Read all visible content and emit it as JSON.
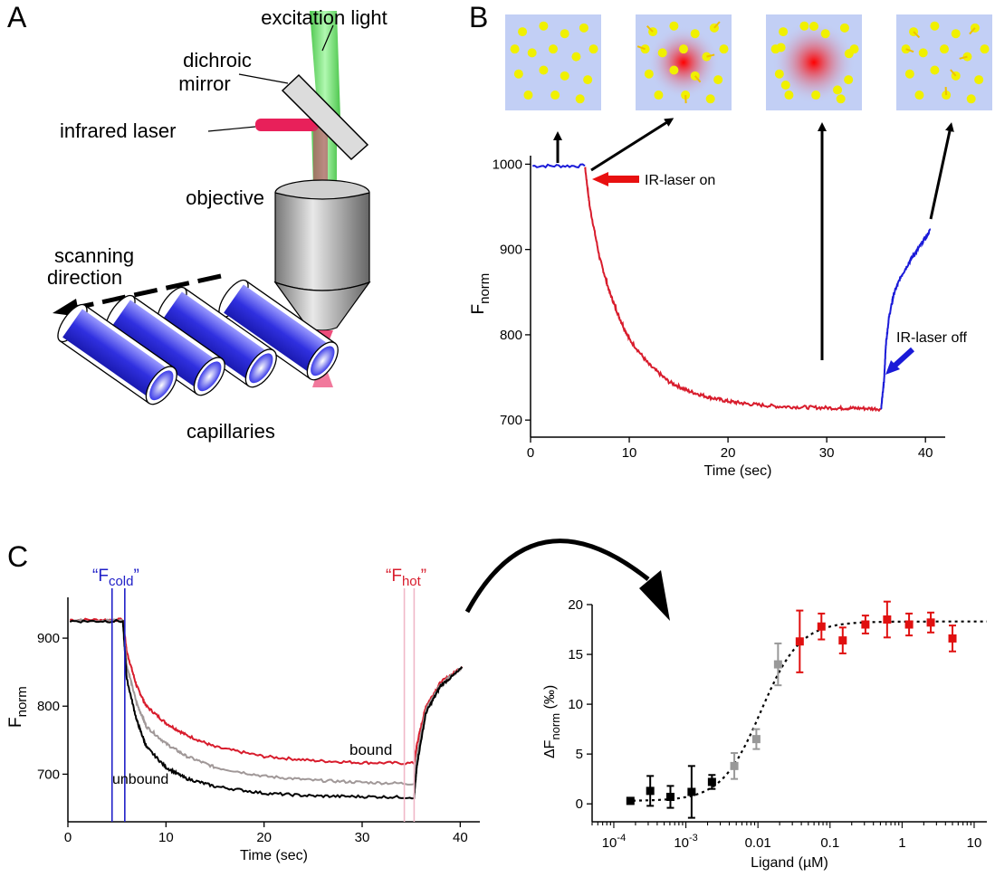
{
  "panel_labels": {
    "a": "A",
    "b": "B",
    "c": "C"
  },
  "panel_a": {
    "labels": {
      "excitation": "excitation light",
      "dichroic_1": "dichroic",
      "dichroic_2": "mirror",
      "infrared": "infrared laser",
      "objective": "objective",
      "scanning_1": "scanning",
      "scanning_2": "direction",
      "capillaries": "capillaries"
    },
    "colors": {
      "capillary": "#3a3ae8",
      "excitation": "#5fe05f",
      "laser": "#e8205a"
    }
  },
  "panel_b": {
    "annotations": {
      "ir_on": "IR-laser on",
      "ir_off": "IR-laser off"
    },
    "insets": [
      {
        "state": "uniform"
      },
      {
        "state": "heating"
      },
      {
        "state": "depleted"
      },
      {
        "state": "recovering"
      }
    ],
    "colors": {
      "cold": "#1a1ad8",
      "hot": "#d81c2c",
      "arrow": "#e81010",
      "inset_bg": "#c2cff5",
      "particle": "#f0f000"
    }
  },
  "panel_c": {
    "labels": {
      "f_cold": "“Fcold”",
      "f_hot": "“Fhot”",
      "bound": "bound",
      "unbound": "unbound"
    },
    "colors": {
      "bound": "#d81c2c",
      "intermediate": "#a09898",
      "unbound": "#000000",
      "cold_line": "#2020c8",
      "hot_line": "#f0b8c8"
    }
  },
  "chart_data": [
    {
      "type": "line",
      "xlabel": "Time (sec)",
      "ylabel": "Fnorm",
      "xlim": [
        0,
        42
      ],
      "ylim": [
        680,
        1010
      ],
      "xticks": [
        0,
        10,
        20,
        30,
        40
      ],
      "yticks": [
        700,
        800,
        900,
        1000
      ],
      "series": [
        {
          "color": "#1a1ad8",
          "x": [
            0.2,
            5.5
          ],
          "y": [
            998,
            998
          ]
        },
        {
          "color": "#d81c2c",
          "x": [
            5.5,
            6,
            7,
            8,
            9,
            10,
            12,
            14,
            16,
            18,
            20,
            22,
            25,
            28,
            31,
            33,
            35.5
          ],
          "y": [
            998,
            950,
            890,
            850,
            820,
            795,
            765,
            745,
            734,
            727,
            722,
            719,
            716,
            715,
            714,
            714,
            713
          ]
        },
        {
          "color": "#1a1ad8",
          "x": [
            35.5,
            35.8,
            36,
            36.3,
            36.8,
            37.5,
            38.5,
            39.5,
            40.5
          ],
          "y": [
            713,
            745,
            790,
            820,
            848,
            868,
            888,
            905,
            923
          ]
        }
      ]
    },
    {
      "type": "line",
      "xlabel": "Time (sec)",
      "ylabel": "Fnorm",
      "xlim": [
        0,
        42
      ],
      "ylim": [
        630,
        960
      ],
      "xticks": [
        0,
        10,
        20,
        30,
        40
      ],
      "yticks": [
        700,
        800,
        900
      ],
      "series": [
        {
          "name": "bound",
          "color": "#d81c2c",
          "x": [
            0.2,
            5.6,
            6,
            7,
            8,
            10,
            12,
            15,
            20,
            25,
            30,
            35.3,
            35.6,
            36.5,
            38,
            40.2
          ],
          "y": [
            927,
            927,
            880,
            830,
            800,
            775,
            758,
            740,
            726,
            720,
            717,
            716,
            745,
            800,
            835,
            858
          ]
        },
        {
          "color": "#a09898",
          "x": [
            0.2,
            5.6,
            6,
            7,
            8,
            10,
            12,
            15,
            20,
            25,
            30,
            35.3,
            35.6,
            36.5,
            38,
            40.2
          ],
          "y": [
            926,
            926,
            860,
            805,
            770,
            745,
            727,
            710,
            697,
            691,
            688,
            686,
            728,
            795,
            832,
            857
          ]
        },
        {
          "name": "unbound",
          "color": "#000000",
          "x": [
            0.2,
            5.6,
            6,
            7,
            8,
            10,
            12,
            15,
            20,
            25,
            30,
            35.3,
            35.6,
            36.5,
            38,
            40.2
          ],
          "y": [
            925,
            925,
            840,
            780,
            740,
            710,
            694,
            682,
            672,
            668,
            667,
            666,
            715,
            790,
            830,
            856
          ]
        }
      ]
    },
    {
      "type": "scatter",
      "xlabel": "Ligand (µM)",
      "ylabel": "ΔFnorm (‰)",
      "xscale": "log",
      "xlim": [
        5e-05,
        15
      ],
      "ylim": [
        -1.8,
        20
      ],
      "xticks": [
        0.0001,
        0.001,
        0.01,
        0.1,
        1,
        10
      ],
      "xticklabels": [
        [
          "10",
          "-4"
        ],
        [
          "10",
          "-3"
        ],
        [
          "0.01",
          ""
        ],
        [
          "0.1",
          ""
        ],
        [
          "1",
          ""
        ],
        [
          "10",
          ""
        ]
      ],
      "yticks": [
        0,
        5,
        10,
        15,
        20
      ],
      "points": [
        {
          "x": 0.00017,
          "y": 0.3,
          "err": 0.3,
          "color": "#000000"
        },
        {
          "x": 0.00032,
          "y": 1.3,
          "err": 1.5,
          "color": "#000000"
        },
        {
          "x": 0.00061,
          "y": 0.7,
          "err": 1.1,
          "color": "#000000"
        },
        {
          "x": 0.0012,
          "y": 1.2,
          "err": 2.6,
          "color": "#000000"
        },
        {
          "x": 0.0023,
          "y": 2.2,
          "err": 0.7,
          "color": "#000000"
        },
        {
          "x": 0.0047,
          "y": 3.8,
          "err": 1.3,
          "color": "#999999"
        },
        {
          "x": 0.0095,
          "y": 6.5,
          "err": 1.0,
          "color": "#999999"
        },
        {
          "x": 0.019,
          "y": 14.0,
          "err": 2.1,
          "color": "#999999"
        },
        {
          "x": 0.038,
          "y": 16.3,
          "err": 3.1,
          "color": "#e01010"
        },
        {
          "x": 0.076,
          "y": 17.8,
          "err": 1.3,
          "color": "#e01010"
        },
        {
          "x": 0.15,
          "y": 16.4,
          "err": 1.3,
          "color": "#e01010"
        },
        {
          "x": 0.31,
          "y": 18.0,
          "err": 0.9,
          "color": "#e01010"
        },
        {
          "x": 0.62,
          "y": 18.5,
          "err": 1.8,
          "color": "#e01010"
        },
        {
          "x": 1.25,
          "y": 18.0,
          "err": 1.1,
          "color": "#e01010"
        },
        {
          "x": 2.5,
          "y": 18.2,
          "err": 1.0,
          "color": "#e01010"
        },
        {
          "x": 5.0,
          "y": 16.6,
          "err": 1.3,
          "color": "#e01010"
        }
      ],
      "fit": {
        "min": 0.3,
        "max": 18.3,
        "ec50": 0.011,
        "hill": 1.6
      }
    }
  ]
}
